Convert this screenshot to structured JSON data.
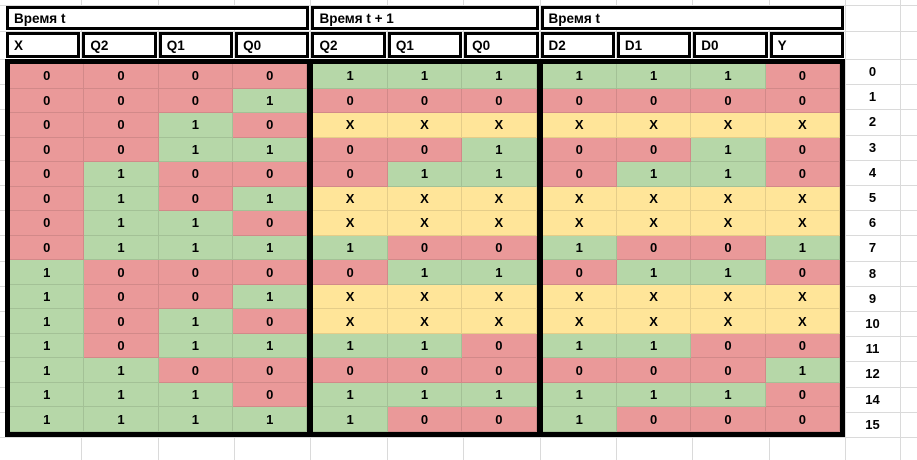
{
  "table": {
    "header_groups": [
      {
        "label": "Время t",
        "span": 4
      },
      {
        "label": "Время t + 1",
        "span": 3
      },
      {
        "label": "Время t",
        "span": 4
      }
    ],
    "columns": [
      "X",
      "Q2",
      "Q1",
      "Q0",
      "Q2",
      "Q1",
      "Q0",
      "D2",
      "D1",
      "D0",
      "Y"
    ],
    "group_sizes": [
      4,
      3,
      4
    ],
    "rows": [
      {
        "label": "0",
        "cells": [
          "0",
          "0",
          "0",
          "0",
          "1",
          "1",
          "1",
          "1",
          "1",
          "1",
          "0"
        ]
      },
      {
        "label": "1",
        "cells": [
          "0",
          "0",
          "0",
          "1",
          "0",
          "0",
          "0",
          "0",
          "0",
          "0",
          "0"
        ]
      },
      {
        "label": "2",
        "cells": [
          "0",
          "0",
          "1",
          "0",
          "X",
          "X",
          "X",
          "X",
          "X",
          "X",
          "X"
        ]
      },
      {
        "label": "3",
        "cells": [
          "0",
          "0",
          "1",
          "1",
          "0",
          "0",
          "1",
          "0",
          "0",
          "1",
          "0"
        ]
      },
      {
        "label": "4",
        "cells": [
          "0",
          "1",
          "0",
          "0",
          "0",
          "1",
          "1",
          "0",
          "1",
          "1",
          "0"
        ]
      },
      {
        "label": "5",
        "cells": [
          "0",
          "1",
          "0",
          "1",
          "X",
          "X",
          "X",
          "X",
          "X",
          "X",
          "X"
        ]
      },
      {
        "label": "6",
        "cells": [
          "0",
          "1",
          "1",
          "0",
          "X",
          "X",
          "X",
          "X",
          "X",
          "X",
          "X"
        ]
      },
      {
        "label": "7",
        "cells": [
          "0",
          "1",
          "1",
          "1",
          "1",
          "0",
          "0",
          "1",
          "0",
          "0",
          "1"
        ]
      },
      {
        "label": "8",
        "cells": [
          "1",
          "0",
          "0",
          "0",
          "0",
          "1",
          "1",
          "0",
          "1",
          "1",
          "0"
        ]
      },
      {
        "label": "9",
        "cells": [
          "1",
          "0",
          "0",
          "1",
          "X",
          "X",
          "X",
          "X",
          "X",
          "X",
          "X"
        ]
      },
      {
        "label": "10",
        "cells": [
          "1",
          "0",
          "1",
          "0",
          "X",
          "X",
          "X",
          "X",
          "X",
          "X",
          "X"
        ]
      },
      {
        "label": "11",
        "cells": [
          "1",
          "0",
          "1",
          "1",
          "1",
          "1",
          "0",
          "1",
          "1",
          "0",
          "0"
        ]
      },
      {
        "label": "12",
        "cells": [
          "1",
          "1",
          "0",
          "0",
          "0",
          "0",
          "0",
          "0",
          "0",
          "0",
          "1"
        ]
      },
      {
        "label": "14",
        "cells": [
          "1",
          "1",
          "1",
          "0",
          "1",
          "1",
          "1",
          "1",
          "1",
          "1",
          "0"
        ]
      },
      {
        "label": "15",
        "cells": [
          "1",
          "1",
          "1",
          "1",
          "1",
          "0",
          "0",
          "1",
          "0",
          "0",
          "0"
        ]
      }
    ]
  },
  "colors": {
    "value_0": "#ea9999",
    "value_1": "#b6d7a8",
    "value_x": "#ffe599",
    "grid_line": "#dadada",
    "border": "#000000"
  }
}
